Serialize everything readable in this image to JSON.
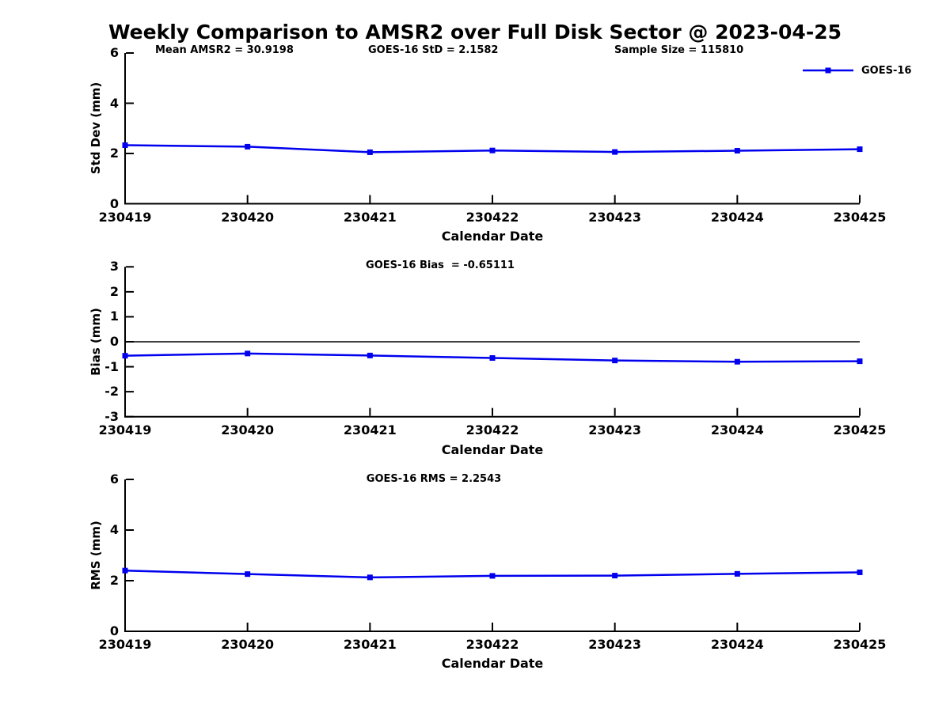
{
  "figure": {
    "title": "Weekly Comparison to AMSR2 over Full Disk Sector @ 2023-04-25"
  },
  "legend": {
    "label": "GOES-16",
    "marker": "square",
    "position": "upper-right"
  },
  "colors": {
    "series": "#0000ee",
    "axis": "#000000",
    "text": "#000000",
    "background": "#ffffff"
  },
  "chart_data": [
    {
      "type": "line",
      "title": "",
      "annotations": [
        "Mean AMSR2 = 30.9198",
        "GOES-16 StD = 2.1582",
        "Sample Size = 115810"
      ],
      "x_categories": [
        "230419",
        "230420",
        "230421",
        "230422",
        "230423",
        "230424",
        "230425"
      ],
      "series": [
        {
          "name": "GOES-16",
          "marker": "square",
          "values": [
            2.33,
            2.27,
            2.05,
            2.12,
            2.06,
            2.11,
            2.17
          ]
        }
      ],
      "xlabel": "Calendar Date",
      "ylabel": "Std Dev (mm)",
      "ylim": [
        0,
        6
      ],
      "yticks": [
        0,
        2,
        4,
        6
      ],
      "zero_line": false,
      "grid": false,
      "legend_visible": true
    },
    {
      "type": "line",
      "title": "GOES-16 Bias  = -0.65111",
      "x_categories": [
        "230419",
        "230420",
        "230421",
        "230422",
        "230423",
        "230424",
        "230425"
      ],
      "series": [
        {
          "name": "GOES-16",
          "marker": "square",
          "values": [
            -0.56,
            -0.47,
            -0.55,
            -0.65,
            -0.75,
            -0.8,
            -0.78
          ]
        }
      ],
      "xlabel": "Calendar Date",
      "ylabel": "Bias (mm)",
      "ylim": [
        -3,
        3
      ],
      "yticks": [
        3,
        2,
        1,
        0,
        -1,
        -2,
        -3
      ],
      "zero_line": true,
      "grid": false,
      "legend_visible": false
    },
    {
      "type": "line",
      "title": "GOES-16 RMS = 2.2543",
      "x_categories": [
        "230419",
        "230420",
        "230421",
        "230422",
        "230423",
        "230424",
        "230425"
      ],
      "series": [
        {
          "name": "GOES-16",
          "marker": "square",
          "values": [
            2.4,
            2.26,
            2.13,
            2.19,
            2.2,
            2.27,
            2.33
          ]
        }
      ],
      "xlabel": "Calendar Date",
      "ylabel": "RMS (mm)",
      "ylim": [
        0,
        6
      ],
      "yticks": [
        0,
        2,
        4,
        6
      ],
      "zero_line": false,
      "grid": false,
      "legend_visible": false
    }
  ]
}
